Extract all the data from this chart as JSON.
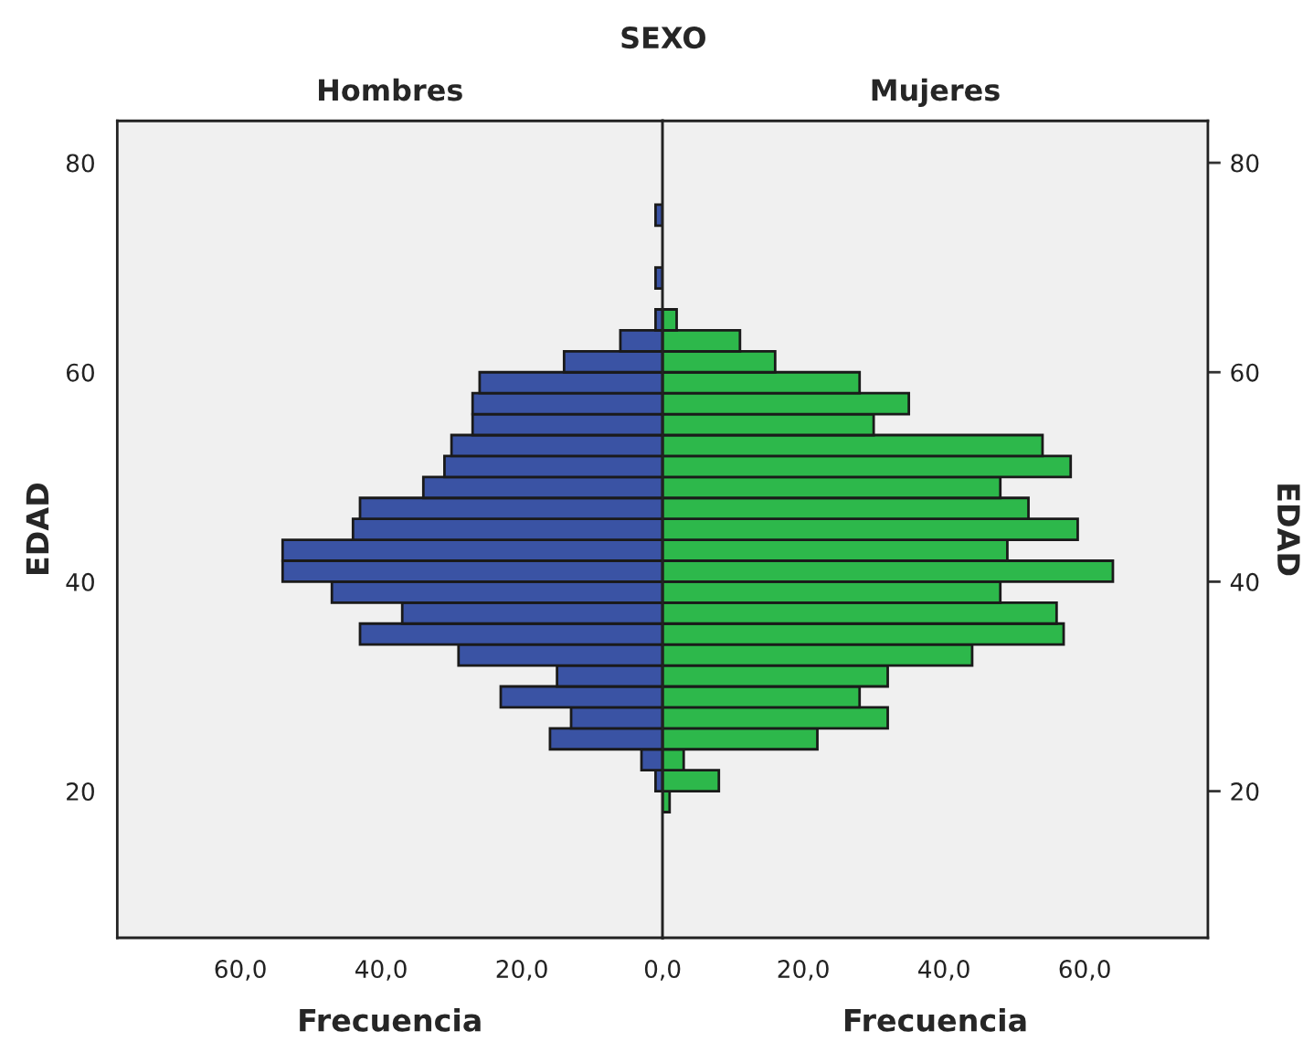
{
  "chart_data": [
    {
      "type": "histogram",
      "orientation": "horizontal",
      "title": "Hombres",
      "xlabel": "Frecuencia",
      "ylabel": "EDAD",
      "annotations": [
        "SEXO"
      ],
      "bins": [
        20,
        22,
        24,
        26,
        28,
        30,
        32,
        34,
        36,
        38,
        40,
        42,
        44,
        46,
        48,
        50,
        52,
        54,
        56,
        58,
        60,
        62,
        64,
        66,
        68,
        70,
        72,
        74,
        76
      ],
      "values": [
        1,
        3,
        16,
        13,
        23,
        15,
        29,
        43,
        37,
        47,
        54,
        54,
        44,
        43,
        34,
        31,
        30,
        27,
        27,
        26,
        14,
        6,
        1,
        0,
        1,
        0,
        0,
        1
      ],
      "color": "#3a53a4",
      "xlim": [
        77.5,
        0
      ],
      "xticks": [
        {
          "value": 60,
          "label": "60,0"
        },
        {
          "value": 40,
          "label": "40,0"
        },
        {
          "value": 20,
          "label": "20,0"
        },
        {
          "value": 0,
          "label": "0,0"
        }
      ],
      "ylim": [
        6,
        84
      ],
      "yticks": [
        20,
        40,
        60,
        80
      ],
      "grid": false
    },
    {
      "type": "histogram",
      "orientation": "horizontal",
      "title": "Mujeres",
      "xlabel": "Frecuencia",
      "ylabel": "EDAD",
      "bins": [
        18,
        20,
        22,
        24,
        26,
        28,
        30,
        32,
        34,
        36,
        38,
        40,
        42,
        44,
        46,
        48,
        50,
        52,
        54,
        56,
        58,
        60,
        62,
        64,
        66
      ],
      "values": [
        1,
        8,
        3,
        22,
        32,
        28,
        32,
        44,
        57,
        56,
        48,
        64,
        49,
        59,
        52,
        48,
        58,
        54,
        30,
        35,
        28,
        16,
        11,
        2
      ],
      "color": "#2db84b",
      "xlim": [
        0,
        77.5
      ],
      "xticks": [
        {
          "value": 20,
          "label": "20,0"
        },
        {
          "value": 40,
          "label": "40,0"
        },
        {
          "value": 60,
          "label": "60,0"
        }
      ],
      "ylim": [
        6,
        84
      ],
      "yticks": [
        20,
        40,
        60,
        80
      ],
      "grid": false
    }
  ]
}
